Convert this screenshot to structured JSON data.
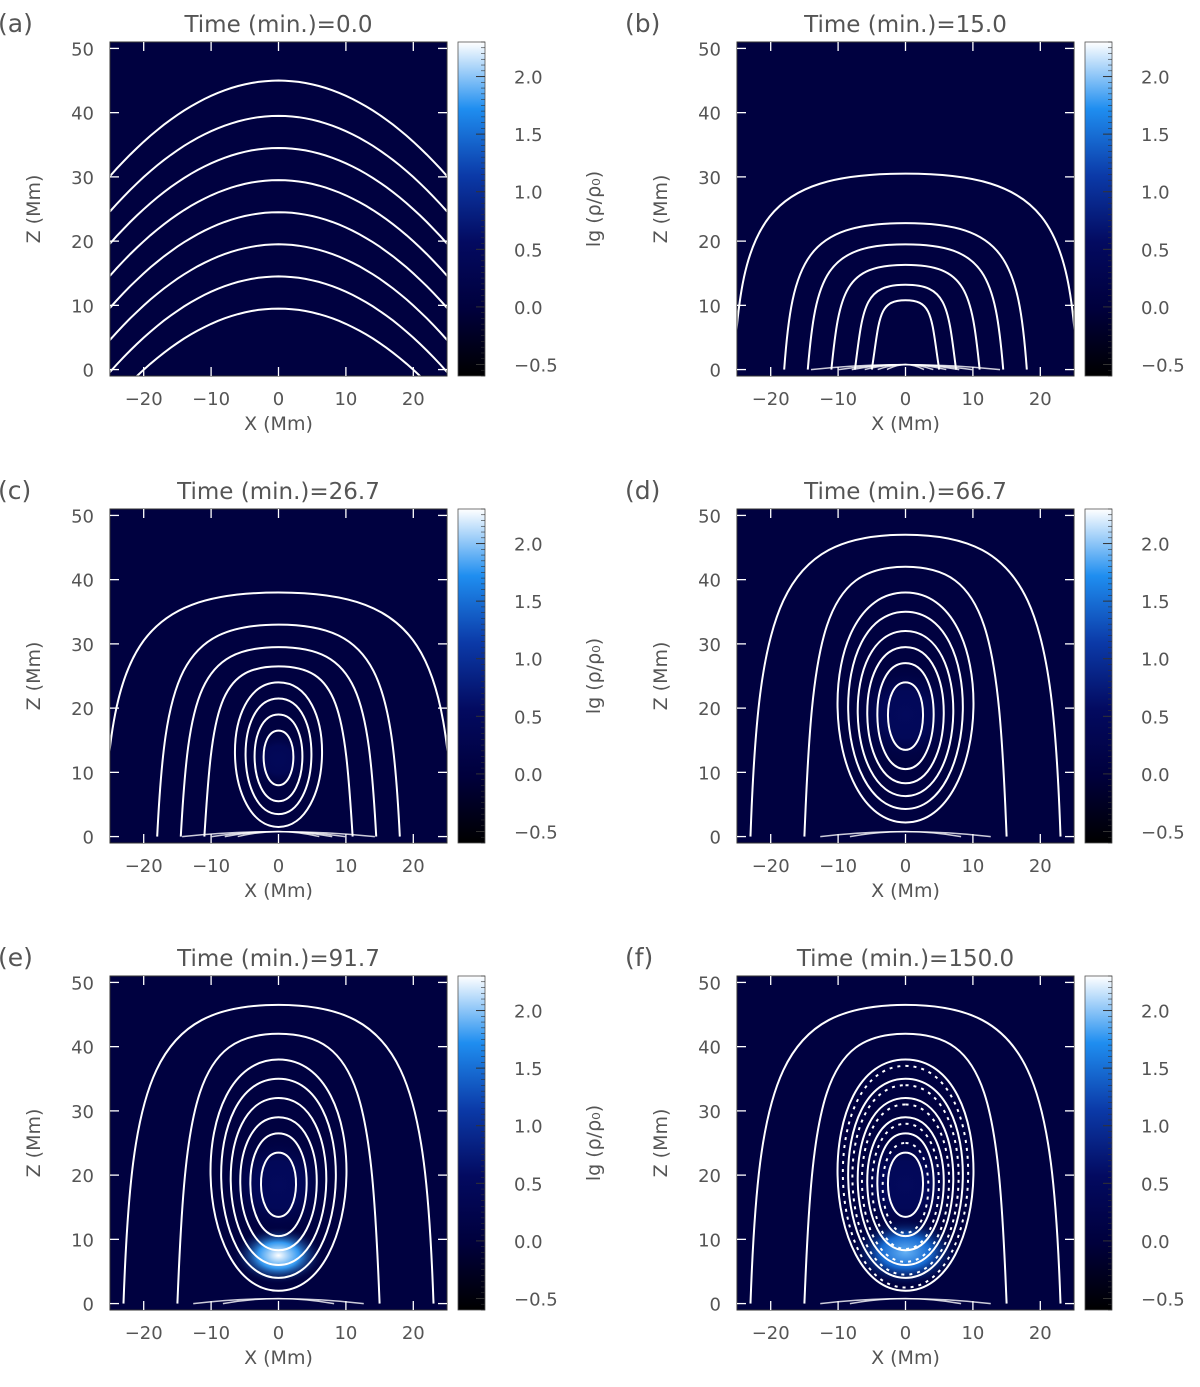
{
  "figure": {
    "colorbar": {
      "label": "lg (ρ/ρ₀)",
      "ticks": [
        "2.0",
        "1.5",
        "1.0",
        "0.5",
        "0.0",
        "−0.5"
      ],
      "tick_values": [
        2.0,
        1.5,
        1.0,
        0.5,
        0.0,
        -0.5
      ],
      "range": [
        -0.6,
        2.3
      ],
      "colors": [
        "#000000",
        "#00003c",
        "#030a60",
        "#0b3aa8",
        "#1f8ef0",
        "#ffffff"
      ]
    }
  },
  "chart_data": [
    {
      "type": "heatmap",
      "panel_label": "(a)",
      "title": "Time (min.)=0.0",
      "xlabel": "X (Mm)",
      "ylabel": "Z (Mm)",
      "xlim": [
        -25,
        25
      ],
      "ylim": [
        -1,
        51
      ],
      "xticks": [
        -20,
        -10,
        0,
        10,
        20
      ],
      "yticks": [
        0,
        10,
        20,
        30,
        40,
        50
      ],
      "xtick_labels": [
        "−20",
        "−10",
        "0",
        "10",
        "20"
      ],
      "ytick_labels": [
        "0",
        "10",
        "20",
        "30",
        "40",
        "50"
      ],
      "field_lines": {
        "kind": "arcade",
        "apex_z": [
          9.5,
          14.5,
          19.5,
          24.5,
          29.5,
          34.5,
          39.5,
          45
        ]
      },
      "blobs": []
    },
    {
      "type": "heatmap",
      "panel_label": "(b)",
      "title": "Time (min.)=15.0",
      "xlabel": "X (Mm)",
      "ylabel": "Z (Mm)",
      "xlim": [
        -25,
        25
      ],
      "ylim": [
        -1,
        51
      ],
      "xticks": [
        -20,
        -10,
        0,
        10,
        20
      ],
      "yticks": [
        0,
        10,
        20,
        30,
        40,
        50
      ],
      "xtick_labels": [
        "−20",
        "−10",
        "0",
        "10",
        "20"
      ],
      "ytick_labels": [
        "0",
        "10",
        "20",
        "30",
        "40",
        "50"
      ],
      "field_lines": {
        "kind": "rope",
        "center_z": 5.5,
        "loops": [
          {
            "top_z": 10.8,
            "bottom_z": 0,
            "x_extent": 5
          },
          {
            "top_z": 13.2,
            "bottom_z": 0,
            "x_extent": 7.5
          },
          {
            "top_z": 16.3,
            "bottom_z": 0,
            "x_extent": 11
          },
          {
            "top_z": 19.5,
            "bottom_z": 0,
            "x_extent": 14.5
          },
          {
            "top_z": 22.8,
            "bottom_z": 0,
            "x_extent": 18
          },
          {
            "top_z": 30.5,
            "bottom_z": 0,
            "x_extent": 25.5
          }
        ]
      },
      "blobs": []
    },
    {
      "type": "heatmap",
      "panel_label": "(c)",
      "title": "Time (min.)=26.7",
      "xlabel": "X (Mm)",
      "ylabel": "Z (Mm)",
      "xlim": [
        -25,
        25
      ],
      "ylim": [
        -1,
        51
      ],
      "xticks": [
        -20,
        -10,
        0,
        10,
        20
      ],
      "yticks": [
        0,
        10,
        20,
        30,
        40,
        50
      ],
      "xtick_labels": [
        "−20",
        "−10",
        "0",
        "10",
        "20"
      ],
      "ytick_labels": [
        "0",
        "10",
        "20",
        "30",
        "40",
        "50"
      ],
      "field_lines": {
        "kind": "rope",
        "center_z": 12,
        "loops": [
          {
            "rx": 2.8,
            "top_z": 16.5,
            "bottom_z": 8
          },
          {
            "rx": 4.5,
            "top_z": 19,
            "bottom_z": 5.5
          },
          {
            "rx": 6.2,
            "top_z": 21.5,
            "bottom_z": 3.5
          },
          {
            "rx": 8.2,
            "top_z": 24,
            "bottom_z": 1.5
          },
          {
            "top_z": 26.5,
            "bottom_z": 0,
            "x_extent": 11
          },
          {
            "top_z": 29.5,
            "bottom_z": 0,
            "x_extent": 14.5
          },
          {
            "top_z": 33,
            "bottom_z": 0,
            "x_extent": 18
          },
          {
            "top_z": 38,
            "bottom_z": 0,
            "x_extent": 26
          }
        ]
      },
      "blobs": [
        {
          "x": 0,
          "z": 12,
          "r": 3.5,
          "value": 0.45
        }
      ]
    },
    {
      "type": "heatmap",
      "panel_label": "(d)",
      "title": "Time (min.)=66.7",
      "xlabel": "X (Mm)",
      "ylabel": "Z (Mm)",
      "xlim": [
        -25,
        25
      ],
      "ylim": [
        -1,
        51
      ],
      "xticks": [
        -20,
        -10,
        0,
        10,
        20
      ],
      "yticks": [
        0,
        10,
        20,
        30,
        40,
        50
      ],
      "xtick_labels": [
        "−20",
        "−10",
        "0",
        "10",
        "20"
      ],
      "ytick_labels": [
        "0",
        "10",
        "20",
        "30",
        "40",
        "50"
      ],
      "field_lines": {
        "kind": "rope",
        "center_z": 19,
        "loops": [
          {
            "rx": 3.3,
            "top_z": 24,
            "bottom_z": 13.5
          },
          {
            "rx": 5.3,
            "top_z": 27,
            "bottom_z": 10.5
          },
          {
            "rx": 7.2,
            "top_z": 29.5,
            "bottom_z": 8.3
          },
          {
            "rx": 9,
            "top_z": 32,
            "bottom_z": 6.3
          },
          {
            "rx": 10.8,
            "top_z": 35,
            "bottom_z": 4.3
          },
          {
            "rx": 12.8,
            "top_z": 38,
            "bottom_z": 2.2
          },
          {
            "top_z": 42,
            "bottom_z": 0,
            "x_extent": 15
          },
          {
            "top_z": 47,
            "bottom_z": 0,
            "x_extent": 23
          }
        ]
      },
      "blobs": [
        {
          "x": 0,
          "z": 19,
          "r": 6,
          "value": 0.5
        }
      ]
    },
    {
      "type": "heatmap",
      "panel_label": "(e)",
      "title": "Time (min.)=91.7",
      "xlabel": "X (Mm)",
      "ylabel": "Z (Mm)",
      "xlim": [
        -25,
        25
      ],
      "ylim": [
        -1,
        51
      ],
      "xticks": [
        -20,
        -10,
        0,
        10,
        20
      ],
      "yticks": [
        0,
        10,
        20,
        30,
        40,
        50
      ],
      "xtick_labels": [
        "−20",
        "−10",
        "0",
        "10",
        "20"
      ],
      "ytick_labels": [
        "0",
        "10",
        "20",
        "30",
        "40",
        "50"
      ],
      "field_lines": {
        "kind": "rope",
        "center_z": 18.5,
        "loops": [
          {
            "rx": 3.3,
            "top_z": 23.5,
            "bottom_z": 13.5
          },
          {
            "rx": 5.3,
            "top_z": 26.5,
            "bottom_z": 10.5
          },
          {
            "rx": 7.2,
            "top_z": 29,
            "bottom_z": 8.3
          },
          {
            "rx": 9,
            "top_z": 32,
            "bottom_z": 6
          },
          {
            "rx": 10.8,
            "top_z": 35,
            "bottom_z": 4
          },
          {
            "rx": 12.8,
            "top_z": 38,
            "bottom_z": 2
          },
          {
            "top_z": 42,
            "bottom_z": 0,
            "x_extent": 15
          },
          {
            "top_z": 46.5,
            "bottom_z": 0,
            "x_extent": 23
          }
        ]
      },
      "blobs": [
        {
          "x": 0,
          "z": 18.5,
          "r": 6,
          "value": 0.5
        },
        {
          "x": 0,
          "z": 7.5,
          "r": 5,
          "value": 2.3
        }
      ]
    },
    {
      "type": "heatmap",
      "panel_label": "(f)",
      "title": "Time (min.)=150.0",
      "xlabel": "X (Mm)",
      "ylabel": "Z (Mm)",
      "xlim": [
        -25,
        25
      ],
      "ylim": [
        -1,
        51
      ],
      "xticks": [
        -20,
        -10,
        0,
        10,
        20
      ],
      "yticks": [
        0,
        10,
        20,
        30,
        40,
        50
      ],
      "xtick_labels": [
        "−20",
        "−10",
        "0",
        "10",
        "20"
      ],
      "ytick_labels": [
        "0",
        "10",
        "20",
        "30",
        "40",
        "50"
      ],
      "field_lines": {
        "kind": "rope",
        "center_z": 18.5,
        "loops": [
          {
            "rx": 3.3,
            "top_z": 23.5,
            "bottom_z": 13.5
          },
          {
            "rx": 5.3,
            "top_z": 26.5,
            "bottom_z": 10.5
          },
          {
            "rx": 7.2,
            "top_z": 29,
            "bottom_z": 8.3
          },
          {
            "rx": 9,
            "top_z": 32,
            "bottom_z": 6
          },
          {
            "rx": 10.8,
            "top_z": 35,
            "bottom_z": 4
          },
          {
            "rx": 12.8,
            "top_z": 38,
            "bottom_z": 2
          },
          {
            "top_z": 42,
            "bottom_z": 0,
            "x_extent": 15
          },
          {
            "top_z": 46.5,
            "bottom_z": 0,
            "x_extent": 23
          }
        ],
        "overlay_loops": [
          {
            "rx": 4.3,
            "top_z": 25,
            "bottom_z": 11
          },
          {
            "rx": 6.3,
            "top_z": 28,
            "bottom_z": 8.5
          },
          {
            "rx": 8.2,
            "top_z": 31,
            "bottom_z": 6.5
          },
          {
            "rx": 10,
            "top_z": 34,
            "bottom_z": 4.5
          },
          {
            "rx": 11.8,
            "top_z": 37,
            "bottom_z": 2.5
          }
        ]
      },
      "blobs": [
        {
          "x": 0,
          "z": 18.5,
          "r": 6,
          "value": 0.5
        },
        {
          "x": 0,
          "z": 8,
          "r": 6,
          "value": 1.9
        }
      ]
    }
  ]
}
